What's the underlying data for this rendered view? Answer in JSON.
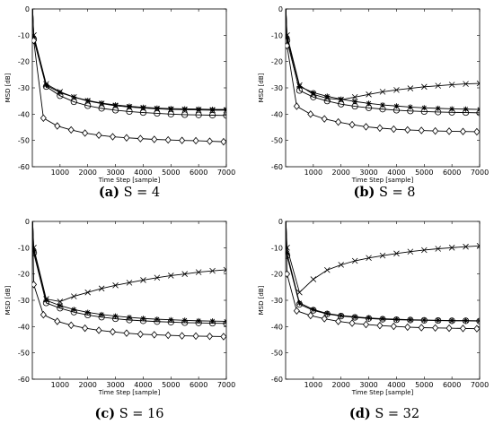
{
  "chart_data": [
    {
      "type": "line",
      "caption_label": "(a)",
      "caption_text": " S = 4",
      "xlabel": "Time Step [sample]",
      "ylabel": "MSD [dB]",
      "xlim": [
        0,
        7000
      ],
      "ylim": [
        -60,
        0
      ],
      "xticks": [
        1000,
        2000,
        3000,
        4000,
        5000,
        6000,
        7000
      ],
      "yticks": [
        0,
        -10,
        -20,
        -30,
        -40,
        -50,
        -60
      ],
      "grid": false,
      "series": [
        {
          "marker": "x",
          "x": [
            50,
            500,
            1000,
            1500,
            2000,
            2500,
            3000,
            3500,
            4000,
            4500,
            5000,
            5500,
            6000,
            6500,
            7000
          ],
          "y": [
            -10,
            -28.5,
            -31.5,
            -33.5,
            -35,
            -36,
            -36.8,
            -37.3,
            -37.7,
            -38,
            -38.2,
            -38.3,
            -38.4,
            -38.5,
            -38.5
          ]
        },
        {
          "marker": "*",
          "x": [
            50,
            500,
            1000,
            1500,
            2000,
            2500,
            3000,
            3500,
            4000,
            4500,
            5000,
            5500,
            6000,
            6500,
            7000
          ],
          "y": [
            -11,
            -29,
            -31.8,
            -33.5,
            -34.8,
            -35.8,
            -36.5,
            -37,
            -37.4,
            -37.7,
            -37.9,
            -38,
            -38.1,
            -38.2,
            -38.2
          ]
        },
        {
          "marker": "o",
          "x": [
            50,
            500,
            1000,
            1500,
            2000,
            2500,
            3000,
            3500,
            4000,
            4500,
            5000,
            5500,
            6000,
            6500,
            7000
          ],
          "y": [
            -11.5,
            -29.5,
            -33,
            -35.3,
            -36.8,
            -37.8,
            -38.5,
            -39,
            -39.4,
            -39.7,
            -40,
            -40.2,
            -40.3,
            -40.4,
            -40.5
          ]
        },
        {
          "marker": "diamond",
          "x": [
            50,
            400,
            900,
            1400,
            1900,
            2400,
            2900,
            3400,
            3900,
            4400,
            4900,
            5400,
            5900,
            6400,
            6900
          ],
          "y": [
            -12,
            -41.5,
            -44.5,
            -46,
            -47.2,
            -48,
            -48.6,
            -49,
            -49.3,
            -49.6,
            -49.8,
            -50,
            -50.1,
            -50.3,
            -50.5
          ]
        }
      ]
    },
    {
      "type": "line",
      "caption_label": "(b)",
      "caption_text": " S = 8",
      "xlabel": "Time Step [sample]",
      "ylabel": "MSD [dB]",
      "xlim": [
        0,
        7000
      ],
      "ylim": [
        -60,
        0
      ],
      "xticks": [
        1000,
        2000,
        3000,
        4000,
        5000,
        6000,
        7000
      ],
      "yticks": [
        0,
        -10,
        -20,
        -30,
        -40,
        -50,
        -60
      ],
      "grid": false,
      "series": [
        {
          "marker": "x",
          "x": [
            50,
            500,
            1000,
            1500,
            2000,
            2500,
            3000,
            3500,
            4000,
            4500,
            5000,
            5500,
            6000,
            6500,
            7000
          ],
          "y": [
            -10,
            -29,
            -32.5,
            -34,
            -34.5,
            -33.5,
            -32.5,
            -31.5,
            -30.8,
            -30.2,
            -29.6,
            -29.2,
            -28.8,
            -28.5,
            -28.3
          ]
        },
        {
          "marker": "*",
          "x": [
            50,
            500,
            1000,
            1500,
            2000,
            2500,
            3000,
            3500,
            4000,
            4500,
            5000,
            5500,
            6000,
            6500,
            7000
          ],
          "y": [
            -11,
            -29.5,
            -31.8,
            -33.2,
            -34.3,
            -35.2,
            -35.9,
            -36.5,
            -36.9,
            -37.3,
            -37.6,
            -37.8,
            -38,
            -38.1,
            -38.2
          ]
        },
        {
          "marker": "o",
          "x": [
            50,
            500,
            1000,
            1500,
            2000,
            2500,
            3000,
            3500,
            4000,
            4500,
            5000,
            5500,
            6000,
            6500,
            7000
          ],
          "y": [
            -12,
            -31,
            -33.5,
            -35,
            -36.2,
            -37,
            -37.6,
            -38.1,
            -38.5,
            -38.8,
            -39,
            -39.2,
            -39.3,
            -39.4,
            -39.5
          ]
        },
        {
          "marker": "diamond",
          "x": [
            50,
            400,
            900,
            1400,
            1900,
            2400,
            2900,
            3400,
            3900,
            4400,
            4900,
            5400,
            5900,
            6400,
            6900
          ],
          "y": [
            -14,
            -37,
            -40,
            -41.8,
            -43,
            -44,
            -44.8,
            -45.3,
            -45.7,
            -46,
            -46.2,
            -46.4,
            -46.5,
            -46.6,
            -46.7
          ]
        }
      ]
    },
    {
      "type": "line",
      "caption_label": "(c)",
      "caption_text": " S = 16",
      "xlabel": "Time Step [sample]",
      "ylabel": "MSD [dB]",
      "xlim": [
        0,
        7000
      ],
      "ylim": [
        -60,
        0
      ],
      "xticks": [
        1000,
        2000,
        3000,
        4000,
        5000,
        6000,
        7000
      ],
      "yticks": [
        0,
        -10,
        -20,
        -30,
        -40,
        -50,
        -60
      ],
      "grid": false,
      "series": [
        {
          "marker": "x",
          "x": [
            50,
            500,
            1000,
            1500,
            2000,
            2500,
            3000,
            3500,
            4000,
            4500,
            5000,
            5500,
            6000,
            6500,
            7000
          ],
          "y": [
            -10,
            -29.5,
            -30.5,
            -28.5,
            -27,
            -25.5,
            -24.3,
            -23.3,
            -22.3,
            -21.4,
            -20.6,
            -20,
            -19.3,
            -18.8,
            -18.4
          ]
        },
        {
          "marker": "*",
          "x": [
            50,
            500,
            1000,
            1500,
            2000,
            2500,
            3000,
            3500,
            4000,
            4500,
            5000,
            5500,
            6000,
            6500,
            7000
          ],
          "y": [
            -11,
            -30,
            -32,
            -33.5,
            -34.6,
            -35.4,
            -36,
            -36.5,
            -36.9,
            -37.2,
            -37.4,
            -37.6,
            -37.8,
            -37.9,
            -38
          ]
        },
        {
          "marker": "o",
          "x": [
            50,
            500,
            1000,
            1500,
            2000,
            2500,
            3000,
            3500,
            4000,
            4500,
            5000,
            5500,
            6000,
            6500,
            7000
          ],
          "y": [
            -12,
            -31,
            -33,
            -34.5,
            -35.6,
            -36.4,
            -37,
            -37.5,
            -37.8,
            -38.1,
            -38.3,
            -38.5,
            -38.6,
            -38.7,
            -38.8
          ]
        },
        {
          "marker": "diamond",
          "x": [
            50,
            400,
            900,
            1400,
            1900,
            2400,
            2900,
            3400,
            3900,
            4400,
            4900,
            5400,
            5900,
            6400,
            6900
          ],
          "y": [
            -24,
            -35.5,
            -38,
            -39.5,
            -40.6,
            -41.4,
            -42,
            -42.5,
            -42.9,
            -43.1,
            -43.3,
            -43.5,
            -43.6,
            -43.7,
            -43.8
          ]
        }
      ]
    },
    {
      "type": "line",
      "caption_label": "(d)",
      "caption_text": " S = 32",
      "xlabel": "Time Step [sample]",
      "ylabel": "MSD [dB]",
      "xlim": [
        0,
        7000
      ],
      "ylim": [
        -60,
        0
      ],
      "xticks": [
        1000,
        2000,
        3000,
        4000,
        5000,
        6000,
        7000
      ],
      "yticks": [
        0,
        -10,
        -20,
        -30,
        -40,
        -50,
        -60
      ],
      "grid": false,
      "series": [
        {
          "marker": "x",
          "x": [
            50,
            500,
            1000,
            1500,
            2000,
            2500,
            3000,
            3500,
            4000,
            4500,
            5000,
            5500,
            6000,
            6500,
            7000
          ],
          "y": [
            -10,
            -27,
            -22,
            -18.5,
            -16.5,
            -15,
            -13.9,
            -13,
            -12.2,
            -11.5,
            -10.9,
            -10.4,
            -10,
            -9.6,
            -9.3
          ]
        },
        {
          "marker": "*",
          "x": [
            50,
            500,
            1000,
            1500,
            2000,
            2500,
            3000,
            3500,
            4000,
            4500,
            5000,
            5500,
            6000,
            6500,
            7000
          ],
          "y": [
            -12,
            -31,
            -33.5,
            -35,
            -35.8,
            -36.3,
            -36.7,
            -37,
            -37.2,
            -37.4,
            -37.5,
            -37.6,
            -37.7,
            -37.7,
            -37.8
          ]
        },
        {
          "marker": "o",
          "x": [
            50,
            500,
            1000,
            1500,
            2000,
            2500,
            3000,
            3500,
            4000,
            4500,
            5000,
            5500,
            6000,
            6500,
            7000
          ],
          "y": [
            -13,
            -31.5,
            -33.8,
            -35.2,
            -36,
            -36.5,
            -36.9,
            -37.2,
            -37.4,
            -37.5,
            -37.6,
            -37.7,
            -37.8,
            -37.8,
            -37.9
          ]
        },
        {
          "marker": "diamond",
          "x": [
            50,
            400,
            900,
            1400,
            1900,
            2400,
            2900,
            3400,
            3900,
            4400,
            4900,
            5400,
            5900,
            6400,
            6900
          ],
          "y": [
            -20,
            -34,
            -35.8,
            -37,
            -38,
            -38.7,
            -39.2,
            -39.6,
            -39.9,
            -40.2,
            -40.4,
            -40.5,
            -40.6,
            -40.7,
            -40.8
          ]
        }
      ]
    }
  ]
}
